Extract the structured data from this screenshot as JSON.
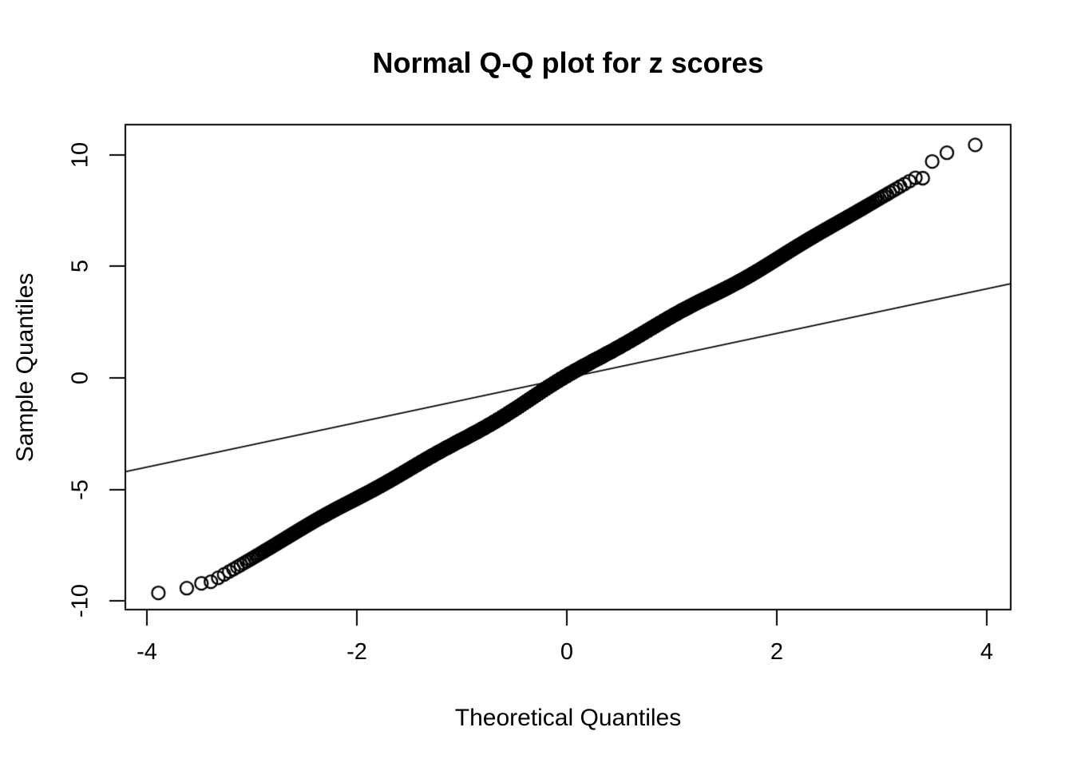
{
  "chart_data": {
    "type": "scatter",
    "subtype": "normal-qq-plot",
    "title": "Normal Q-Q plot for z scores",
    "xlabel": "Theoretical Quantiles",
    "ylabel": "Sample Quantiles",
    "x_ticks": [
      -4,
      -2,
      0,
      2,
      4
    ],
    "y_ticks": [
      -10,
      -5,
      0,
      5,
      10
    ],
    "xlim": [
      -4.205,
      4.228
    ],
    "ylim": [
      -10.39,
      11.36
    ],
    "grid": false,
    "legend": null,
    "background_color": "#ffffff",
    "axis_color": "#000000",
    "point_color": "#000000",
    "marker": "open-circle",
    "n_points_estimate": 10000,
    "bulk_relation": {
      "slope": 2.7,
      "intercept": 0
    },
    "wiggle": {
      "amp1": 0.09,
      "freq1": 2.1,
      "phase1": 0.7,
      "amp2": 0.05,
      "freq2": 5.3,
      "phase2": 1.9,
      "decay_scale": 2.7
    },
    "left_tail_points": [
      [
        -3.89,
        -9.64
      ],
      [
        -3.62,
        -9.43
      ],
      [
        -3.48,
        -9.21
      ],
      [
        -3.39,
        -9.14
      ]
    ],
    "right_tail_points": [
      [
        3.39,
        8.96
      ],
      [
        3.48,
        9.71
      ],
      [
        3.62,
        10.1
      ],
      [
        3.89,
        10.45
      ]
    ],
    "x_range_of_points": [
      -3.89,
      3.89
    ],
    "y_range_of_points": [
      -9.64,
      10.45
    ],
    "reference_line": {
      "slope": 1,
      "intercept": 0,
      "style": "solid",
      "color": "#000000"
    }
  }
}
